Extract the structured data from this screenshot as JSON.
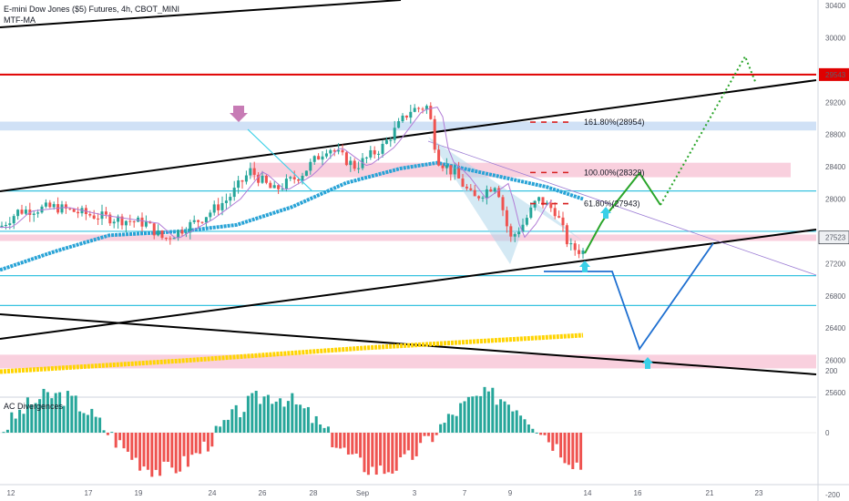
{
  "header": {
    "symbol_line": "E-mini Dow Jones ($5) Futures, 4h, CBOT_MINI",
    "indicator": "MTF-MA"
  },
  "indicator_panel": {
    "label": "AC Divergences"
  },
  "colors": {
    "bull": "#26a69a",
    "bear": "#ef5350",
    "red_line": "#e00000",
    "cyan_line": "#38c3e0",
    "fast_ma": "#b27cd6",
    "slow_ma": "#29a3d6",
    "yellow_ma": "#ffd400",
    "pink_zone": "#f8c8d8",
    "blue_zone": "#c8dcf5",
    "green_path": "#2aa52a",
    "blue_path": "#1e6fd0",
    "callout_blue": "#3ad0e8"
  },
  "chart_data": [
    {
      "type": "line",
      "role": "price",
      "y_axis": {
        "ticks": [
          30400,
          30000,
          29200,
          28800,
          28400,
          28000,
          27200,
          26800,
          26400,
          26000,
          25600
        ],
        "range": [
          25500,
          30500
        ]
      },
      "x_axis": {
        "ticks": [
          "12",
          "17",
          "19",
          "24",
          "26",
          "28",
          "Sep",
          "3",
          "7",
          "9",
          "14",
          "16",
          "21",
          "23"
        ]
      },
      "price_labels": [
        {
          "value": 29543,
          "text": "29543",
          "color": "#e00000"
        },
        {
          "value": 27523,
          "text": "27523",
          "color": "#131722"
        }
      ],
      "fib_levels": [
        {
          "value": 28954,
          "text": "161.80%(28954)"
        },
        {
          "value": 28329,
          "text": "100.00%(28329)"
        },
        {
          "value": 27943,
          "text": "61.80%(27943)"
        }
      ],
      "horizontal_levels": [
        29543,
        28100,
        27600,
        27050,
        26680
      ],
      "zones": [
        {
          "from": 28850,
          "to": 28960,
          "color": "blue"
        },
        {
          "from": 28270,
          "to": 28450,
          "color": "pink"
        },
        {
          "from": 27480,
          "to": 27560,
          "color": "pink"
        },
        {
          "from": 25900,
          "to": 26070,
          "color": "pink"
        }
      ]
    },
    {
      "type": "bar",
      "role": "indicator",
      "title": "AC Divergences",
      "y_axis": {
        "ticks": [
          200,
          0,
          -200
        ],
        "range": [
          -300,
          220
        ]
      }
    }
  ]
}
